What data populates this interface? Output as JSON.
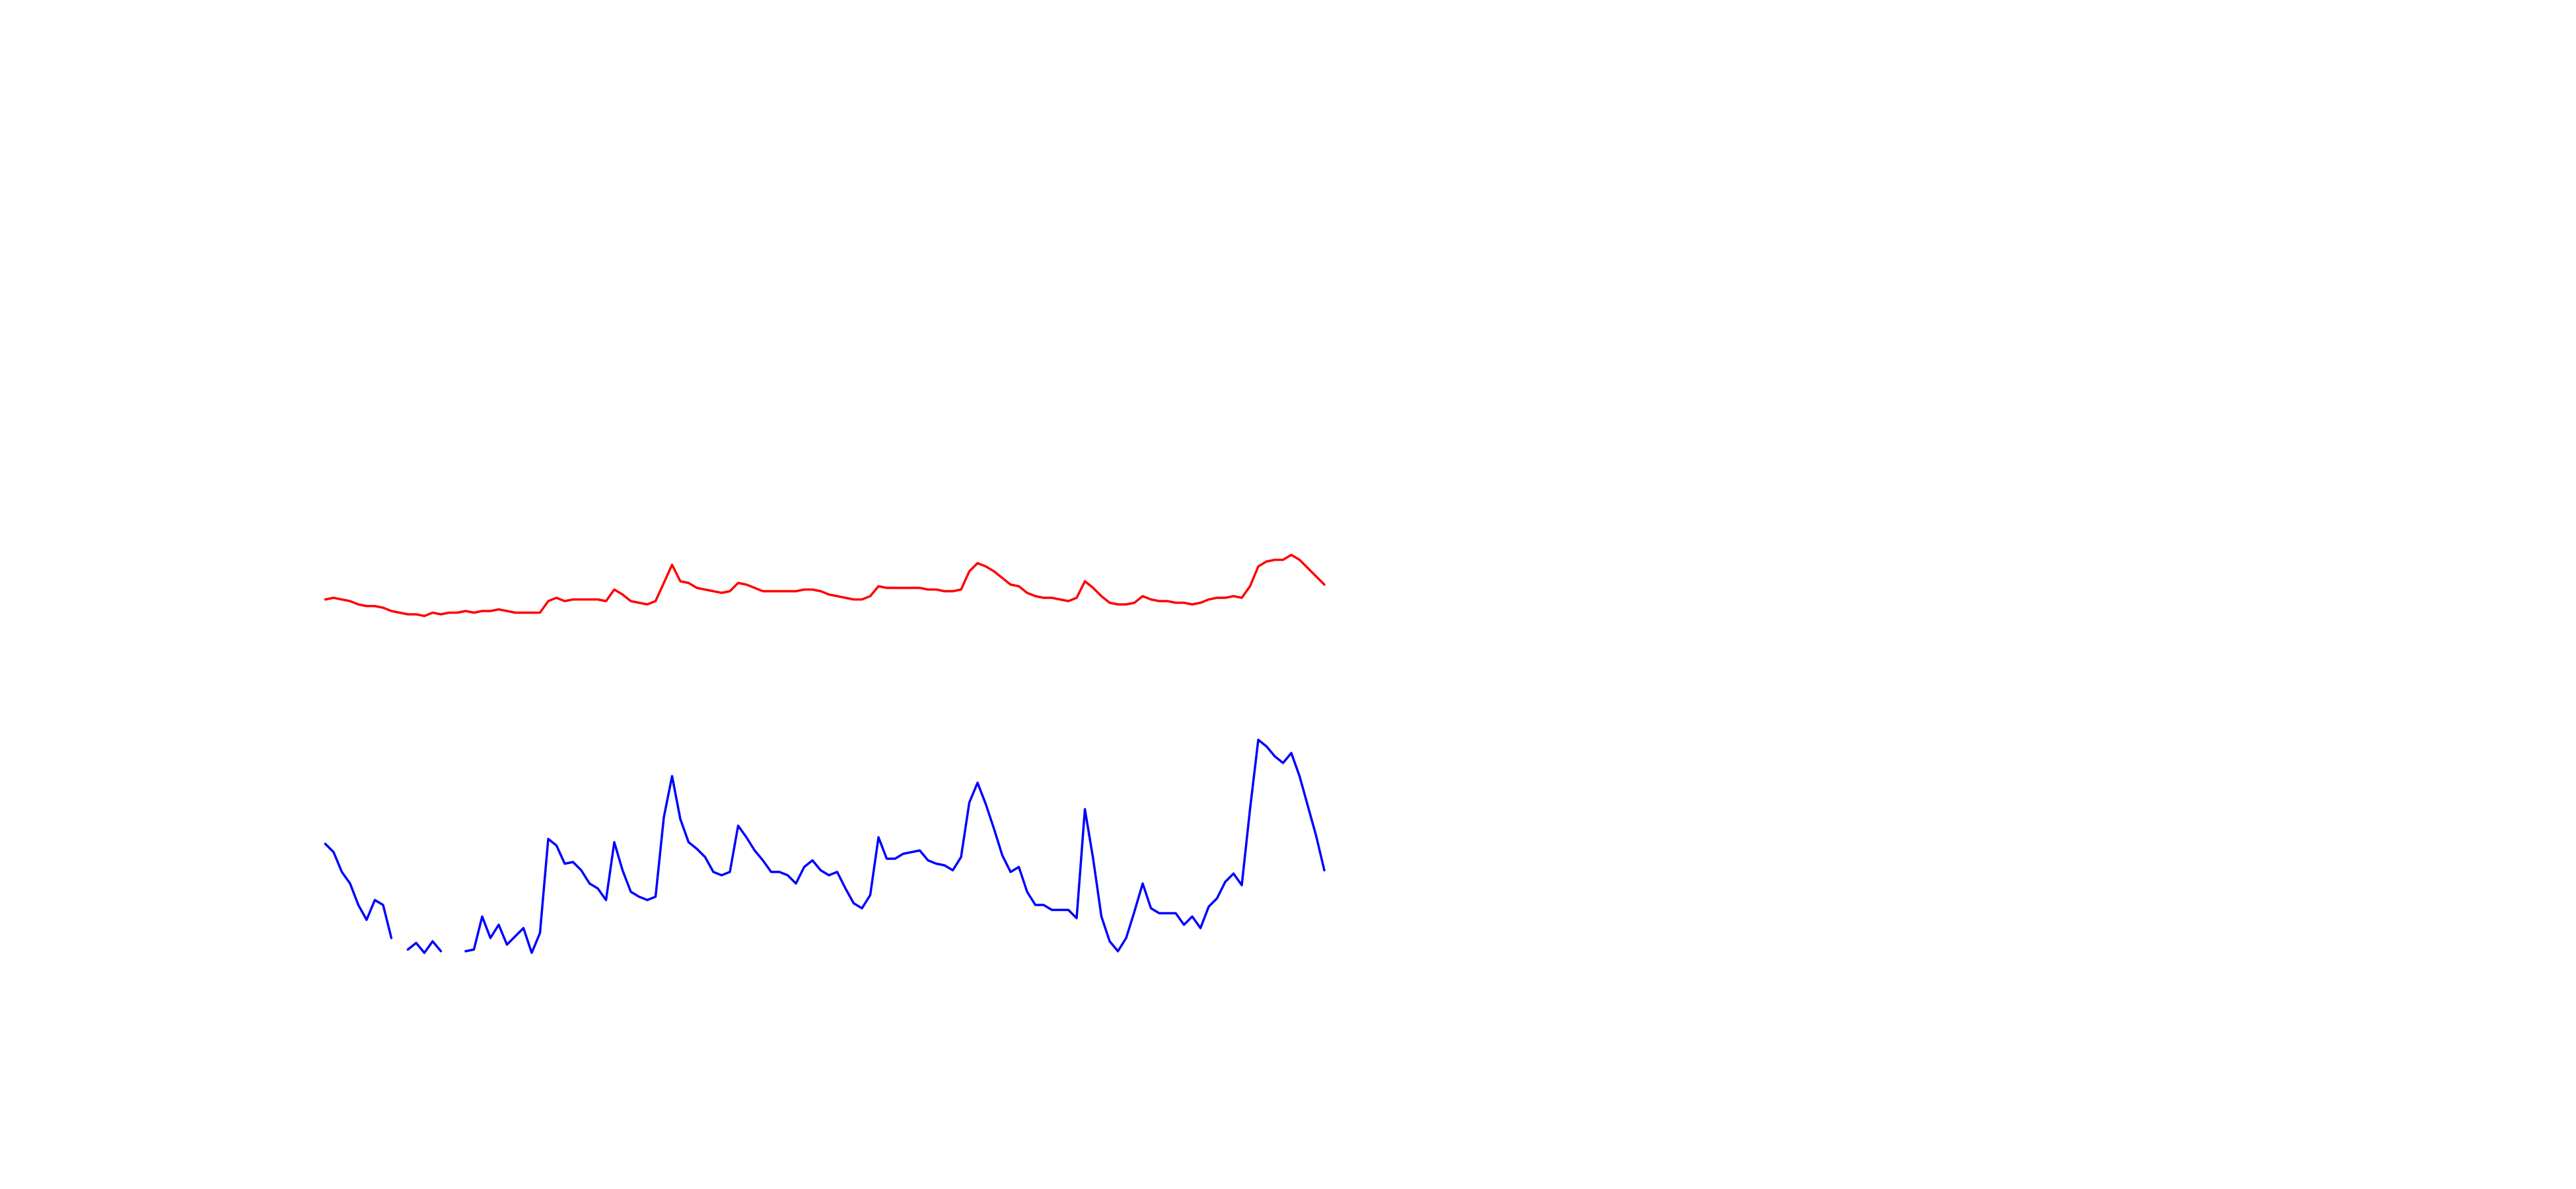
{
  "chart_data": {
    "type": "line",
    "ylim": [
      0,
      300
    ],
    "series": [
      {
        "color": "#ff0000",
        "values": [
          215,
          216,
          215,
          214,
          212,
          211,
          211,
          210,
          208,
          207,
          206,
          206,
          205,
          207,
          206,
          207,
          207,
          208,
          207,
          208,
          208,
          209,
          208,
          207,
          207,
          207,
          207,
          214,
          216,
          214,
          215,
          215,
          215,
          215,
          214,
          221,
          218,
          214,
          213,
          212,
          214,
          225,
          236,
          226,
          225,
          222,
          221,
          220,
          219,
          220,
          225,
          224,
          222,
          220,
          220,
          220,
          220,
          220,
          221,
          221,
          220,
          218,
          217,
          216,
          215,
          215,
          217,
          223,
          222,
          222,
          222,
          222,
          222,
          221,
          221,
          220,
          220,
          221,
          232,
          237,
          235,
          232,
          228,
          224,
          223,
          219,
          217,
          216,
          216,
          215,
          214,
          216,
          226,
          222,
          217,
          213,
          212,
          212,
          213,
          217,
          215,
          214,
          214,
          213,
          213,
          212,
          213,
          215,
          216,
          216,
          217,
          216,
          223,
          235,
          238,
          239,
          239,
          242,
          239,
          234,
          229,
          224
        ]
      },
      {
        "color": "#0000ff",
        "values": [
          67,
          62,
          50,
          43,
          30,
          21,
          33,
          30,
          10,
          null,
          3,
          7,
          1,
          8,
          2,
          null,
          null,
          2,
          3,
          23,
          10,
          18,
          6,
          11,
          16,
          1,
          13,
          70,
          66,
          55,
          56,
          51,
          43,
          40,
          33,
          68,
          51,
          38,
          35,
          33,
          35,
          83,
          108,
          82,
          68,
          64,
          59,
          50,
          48,
          50,
          78,
          71,
          63,
          57,
          50,
          50,
          48,
          43,
          53,
          57,
          51,
          48,
          50,
          40,
          31,
          28,
          36,
          71,
          58,
          58,
          61,
          62,
          63,
          57,
          55,
          54,
          51,
          59,
          92,
          104,
          91,
          76,
          60,
          50,
          53,
          38,
          30,
          30,
          27,
          27,
          27,
          22,
          88,
          58,
          23,
          8,
          2,
          10,
          26,
          43,
          28,
          25,
          25,
          25,
          18,
          23,
          16,
          29,
          34,
          44,
          49,
          42,
          88,
          130,
          126,
          120,
          116,
          122,
          108,
          90,
          72,
          51
        ]
      }
    ]
  }
}
